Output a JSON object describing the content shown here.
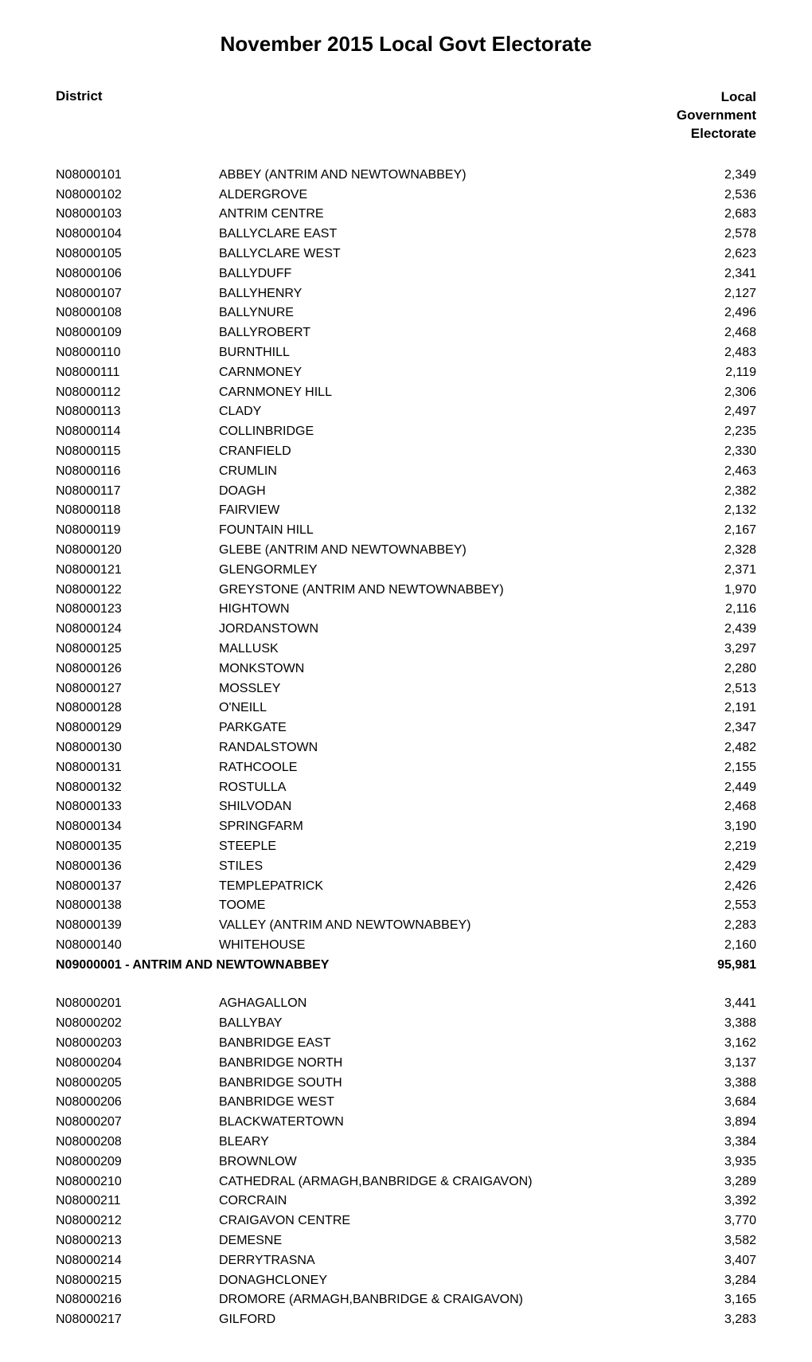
{
  "title": "November 2015 Local Govt Electorate",
  "header": {
    "left": "District",
    "right_lines": [
      "Local",
      "Government",
      "Electorate"
    ]
  },
  "sections": [
    {
      "rows": [
        {
          "code": "N08000101",
          "name": "ABBEY (ANTRIM AND NEWTOWNABBEY)",
          "value": "2,349"
        },
        {
          "code": "N08000102",
          "name": "ALDERGROVE",
          "value": "2,536"
        },
        {
          "code": "N08000103",
          "name": "ANTRIM CENTRE",
          "value": "2,683"
        },
        {
          "code": "N08000104",
          "name": "BALLYCLARE EAST",
          "value": "2,578"
        },
        {
          "code": "N08000105",
          "name": "BALLYCLARE WEST",
          "value": "2,623"
        },
        {
          "code": "N08000106",
          "name": "BALLYDUFF",
          "value": "2,341"
        },
        {
          "code": "N08000107",
          "name": "BALLYHENRY",
          "value": "2,127"
        },
        {
          "code": "N08000108",
          "name": "BALLYNURE",
          "value": "2,496"
        },
        {
          "code": "N08000109",
          "name": "BALLYROBERT",
          "value": "2,468"
        },
        {
          "code": "N08000110",
          "name": "BURNTHILL",
          "value": "2,483"
        },
        {
          "code": "N08000111",
          "name": "CARNMONEY",
          "value": "2,119"
        },
        {
          "code": "N08000112",
          "name": "CARNMONEY HILL",
          "value": "2,306"
        },
        {
          "code": "N08000113",
          "name": "CLADY",
          "value": "2,497"
        },
        {
          "code": "N08000114",
          "name": "COLLINBRIDGE",
          "value": "2,235"
        },
        {
          "code": "N08000115",
          "name": "CRANFIELD",
          "value": "2,330"
        },
        {
          "code": "N08000116",
          "name": "CRUMLIN",
          "value": "2,463"
        },
        {
          "code": "N08000117",
          "name": "DOAGH",
          "value": "2,382"
        },
        {
          "code": "N08000118",
          "name": "FAIRVIEW",
          "value": "2,132"
        },
        {
          "code": "N08000119",
          "name": "FOUNTAIN HILL",
          "value": "2,167"
        },
        {
          "code": "N08000120",
          "name": "GLEBE (ANTRIM AND NEWTOWNABBEY)",
          "value": "2,328"
        },
        {
          "code": "N08000121",
          "name": "GLENGORMLEY",
          "value": "2,371"
        },
        {
          "code": "N08000122",
          "name": "GREYSTONE (ANTRIM AND NEWTOWNABBEY)",
          "value": "1,970"
        },
        {
          "code": "N08000123",
          "name": "HIGHTOWN",
          "value": "2,116"
        },
        {
          "code": "N08000124",
          "name": "JORDANSTOWN",
          "value": "2,439"
        },
        {
          "code": "N08000125",
          "name": "MALLUSK",
          "value": "3,297"
        },
        {
          "code": "N08000126",
          "name": "MONKSTOWN",
          "value": "2,280"
        },
        {
          "code": "N08000127",
          "name": "MOSSLEY",
          "value": "2,513"
        },
        {
          "code": "N08000128",
          "name": "O'NEILL",
          "value": "2,191"
        },
        {
          "code": "N08000129",
          "name": "PARKGATE",
          "value": "2,347"
        },
        {
          "code": "N08000130",
          "name": "RANDALSTOWN",
          "value": "2,482"
        },
        {
          "code": "N08000131",
          "name": "RATHCOOLE",
          "value": "2,155"
        },
        {
          "code": "N08000132",
          "name": "ROSTULLA",
          "value": "2,449"
        },
        {
          "code": "N08000133",
          "name": "SHILVODAN",
          "value": "2,468"
        },
        {
          "code": "N08000134",
          "name": "SPRINGFARM",
          "value": "3,190"
        },
        {
          "code": "N08000135",
          "name": "STEEPLE",
          "value": "2,219"
        },
        {
          "code": "N08000136",
          "name": "STILES",
          "value": "2,429"
        },
        {
          "code": "N08000137",
          "name": "TEMPLEPATRICK",
          "value": "2,426"
        },
        {
          "code": "N08000138",
          "name": "TOOME",
          "value": "2,553"
        },
        {
          "code": "N08000139",
          "name": "VALLEY (ANTRIM AND NEWTOWNABBEY)",
          "value": "2,283"
        },
        {
          "code": "N08000140",
          "name": "WHITEHOUSE",
          "value": "2,160"
        }
      ],
      "total": {
        "label": "N09000001 - ANTRIM AND NEWTOWNABBEY",
        "value": "95,981"
      }
    },
    {
      "rows": [
        {
          "code": "N08000201",
          "name": "AGHAGALLON",
          "value": "3,441"
        },
        {
          "code": "N08000202",
          "name": "BALLYBAY",
          "value": "3,388"
        },
        {
          "code": "N08000203",
          "name": "BANBRIDGE EAST",
          "value": "3,162"
        },
        {
          "code": "N08000204",
          "name": "BANBRIDGE NORTH",
          "value": "3,137"
        },
        {
          "code": "N08000205",
          "name": "BANBRIDGE SOUTH",
          "value": "3,388"
        },
        {
          "code": "N08000206",
          "name": "BANBRIDGE WEST",
          "value": "3,684"
        },
        {
          "code": "N08000207",
          "name": "BLACKWATERTOWN",
          "value": "3,894"
        },
        {
          "code": "N08000208",
          "name": "BLEARY",
          "value": "3,384"
        },
        {
          "code": "N08000209",
          "name": "BROWNLOW",
          "value": "3,935"
        },
        {
          "code": "N08000210",
          "name": "CATHEDRAL (ARMAGH,BANBRIDGE & CRAIGAVON)",
          "value": "3,289"
        },
        {
          "code": "N08000211",
          "name": "CORCRAIN",
          "value": "3,392"
        },
        {
          "code": "N08000212",
          "name": "CRAIGAVON CENTRE",
          "value": "3,770"
        },
        {
          "code": "N08000213",
          "name": "DEMESNE",
          "value": "3,582"
        },
        {
          "code": "N08000214",
          "name": "DERRYTRASNA",
          "value": "3,407"
        },
        {
          "code": "N08000215",
          "name": "DONAGHCLONEY",
          "value": "3,284"
        },
        {
          "code": "N08000216",
          "name": "DROMORE (ARMAGH,BANBRIDGE & CRAIGAVON)",
          "value": "3,165"
        },
        {
          "code": "N08000217",
          "name": "GILFORD",
          "value": "3,283"
        }
      ],
      "total": null
    }
  ]
}
